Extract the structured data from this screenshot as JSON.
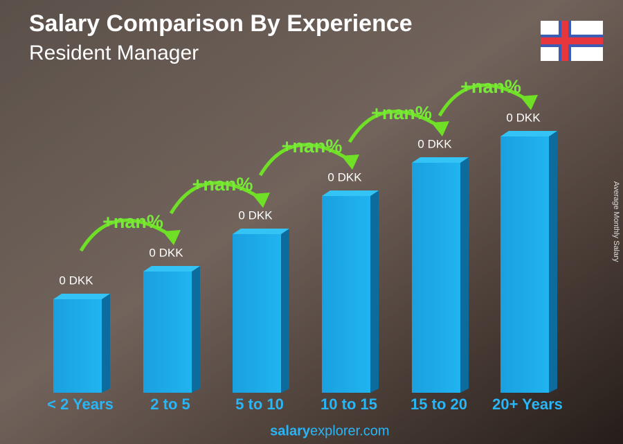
{
  "header": {
    "title": "Salary Comparison By Experience",
    "subtitle": "Resident Manager"
  },
  "axis_label": "Average Monthly Salary",
  "bars": [
    {
      "category": "< 2 Years",
      "label": "0 DKK"
    },
    {
      "category": "2 to 5",
      "label": "0 DKK"
    },
    {
      "category": "5 to 10",
      "label": "0 DKK"
    },
    {
      "category": "10 to 15",
      "label": "0 DKK"
    },
    {
      "category": "15 to 20",
      "label": "0 DKK"
    },
    {
      "category": "20+ Years",
      "label": "0 DKK"
    }
  ],
  "changes": [
    "+nan%",
    "+nan%",
    "+nan%",
    "+nan%",
    "+nan%"
  ],
  "footer": {
    "brand": "salary",
    "rest": "explorer.com"
  }
}
